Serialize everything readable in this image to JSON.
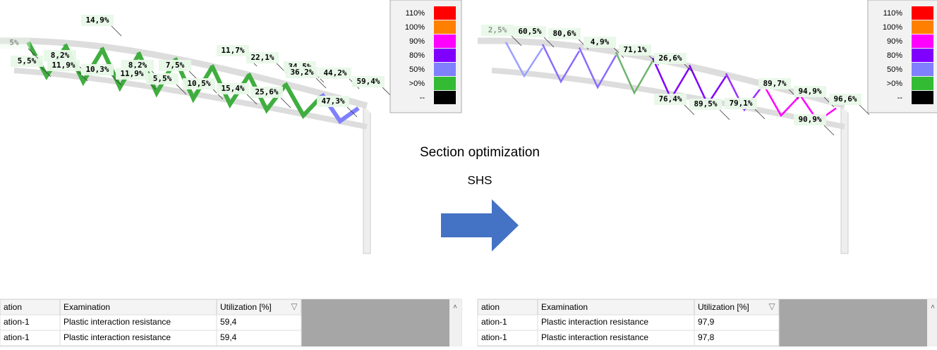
{
  "center": {
    "title": "Section optimization",
    "subtitle": "SHS"
  },
  "panels": [
    {
      "legend": [
        {
          "label": "110%",
          "color": "#ff0000"
        },
        {
          "label": "100%",
          "color": "#ff8000"
        },
        {
          "label": "90%",
          "color": "#ff00ff"
        },
        {
          "label": "80%",
          "color": "#8000ff"
        },
        {
          "label": "50%",
          "color": "#8080ff"
        },
        {
          "label": ">0%",
          "color": "#33bb33"
        },
        {
          "label": "--",
          "color": "#000000"
        }
      ],
      "labels": [
        "14,9%",
        "8,2%",
        "11,9%",
        "5,5%",
        "10,3%",
        "8,2%",
        "11,9%",
        "7,5%",
        "5,5%",
        "10,5%",
        "11,7%",
        "22,1%",
        "15,4%",
        "34,5%",
        "36,2%",
        "44,2%",
        "25,6%",
        "59,4%",
        "47,3%",
        "5%"
      ],
      "table": {
        "headers": [
          "ation",
          "Examination",
          "Utilization [%]"
        ],
        "rows": [
          [
            "ation-1",
            "Plastic interaction resistance",
            "59,4"
          ],
          [
            "ation-1",
            "Plastic interaction resistance",
            "59,4"
          ]
        ]
      }
    },
    {
      "legend": [
        {
          "label": "110%",
          "color": "#ff0000"
        },
        {
          "label": "100%",
          "color": "#ff8000"
        },
        {
          "label": "90%",
          "color": "#ff00ff"
        },
        {
          "label": "80%",
          "color": "#8000ff"
        },
        {
          "label": "50%",
          "color": "#8080ff"
        },
        {
          "label": ">0%",
          "color": "#33bb33"
        },
        {
          "label": "--",
          "color": "#000000"
        }
      ],
      "labels": [
        "2,5%",
        "60,5%",
        "80,6%",
        "4,9%",
        "71,1%",
        "26,6%",
        "76,4%",
        "89,5%",
        "79,1%",
        "89,7%",
        "94,9%",
        "96,6%",
        "90,9%"
      ],
      "table": {
        "headers": [
          "ation",
          "Examination",
          "Utilization [%]"
        ],
        "rows": [
          [
            "ation-1",
            "Plastic interaction resistance",
            "97,9"
          ],
          [
            "ation-1",
            "Plastic interaction resistance",
            "97,8"
          ]
        ]
      }
    }
  ]
}
